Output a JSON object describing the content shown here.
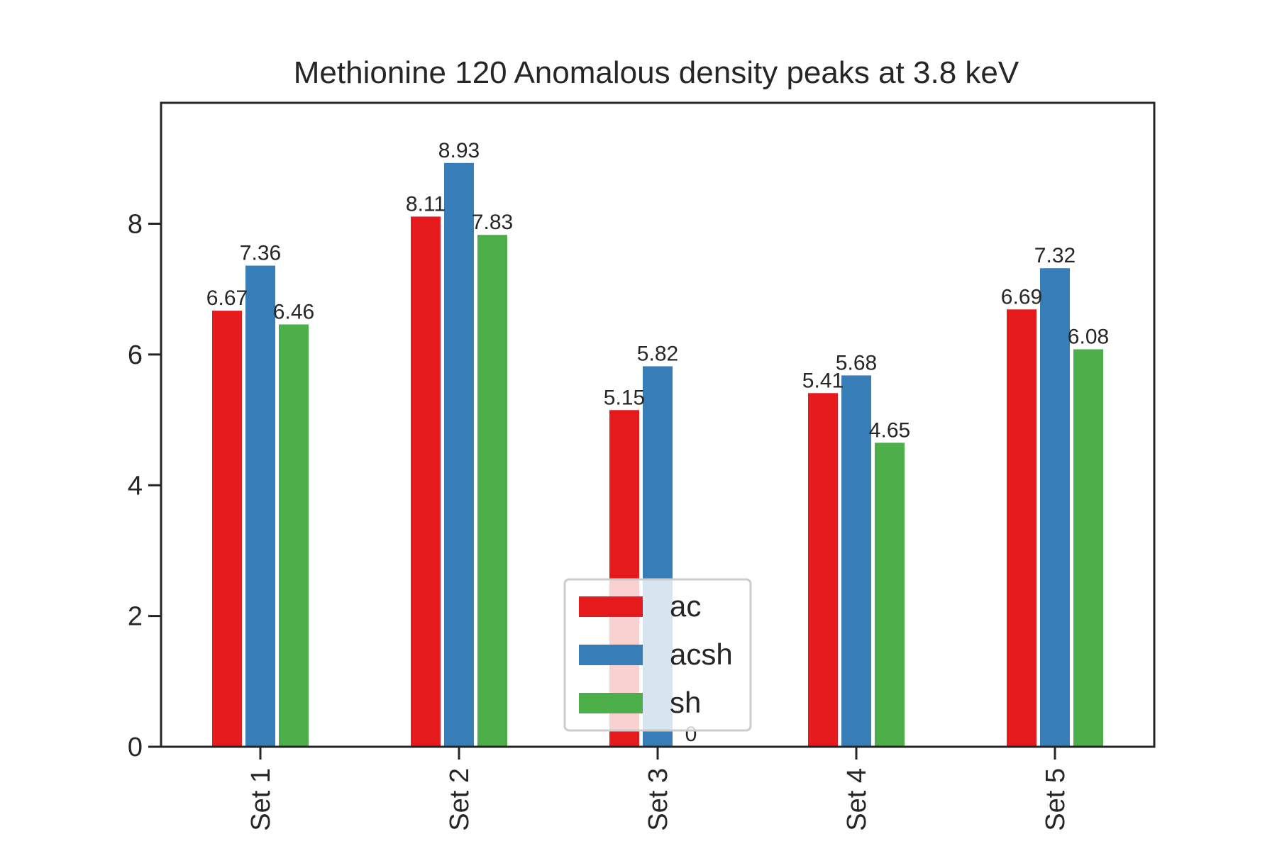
{
  "chart_data": {
    "type": "bar",
    "title": "Methionine 120 Anomalous density peaks at 3.8 keV",
    "xlabel": "",
    "ylabel": "",
    "categories": [
      "Set 1",
      "Set 2",
      "Set 3",
      "Set 4",
      "Set 5"
    ],
    "series": [
      {
        "name": "ac",
        "color": "#e41a1c",
        "values": [
          6.67,
          8.11,
          5.15,
          5.41,
          6.69
        ],
        "labels": [
          "6.67",
          "8.11",
          "5.15",
          "5.41",
          "6.69"
        ]
      },
      {
        "name": "acsh",
        "color": "#377eb8",
        "values": [
          7.36,
          8.93,
          5.82,
          5.68,
          7.32
        ],
        "labels": [
          "7.36",
          "8.93",
          "5.82",
          "5.68",
          "7.32"
        ]
      },
      {
        "name": "sh",
        "color": "#4daf4a",
        "values": [
          6.46,
          7.83,
          0,
          4.65,
          6.08
        ],
        "labels": [
          "6.46",
          "7.83",
          "0",
          "4.65",
          "6.08"
        ]
      }
    ],
    "ylim": [
      0,
      9.85
    ],
    "yticks": [
      0,
      2,
      4,
      6,
      8
    ],
    "grid": false,
    "legend_position": "lower-center",
    "x_tick_rotation": "vertical"
  }
}
